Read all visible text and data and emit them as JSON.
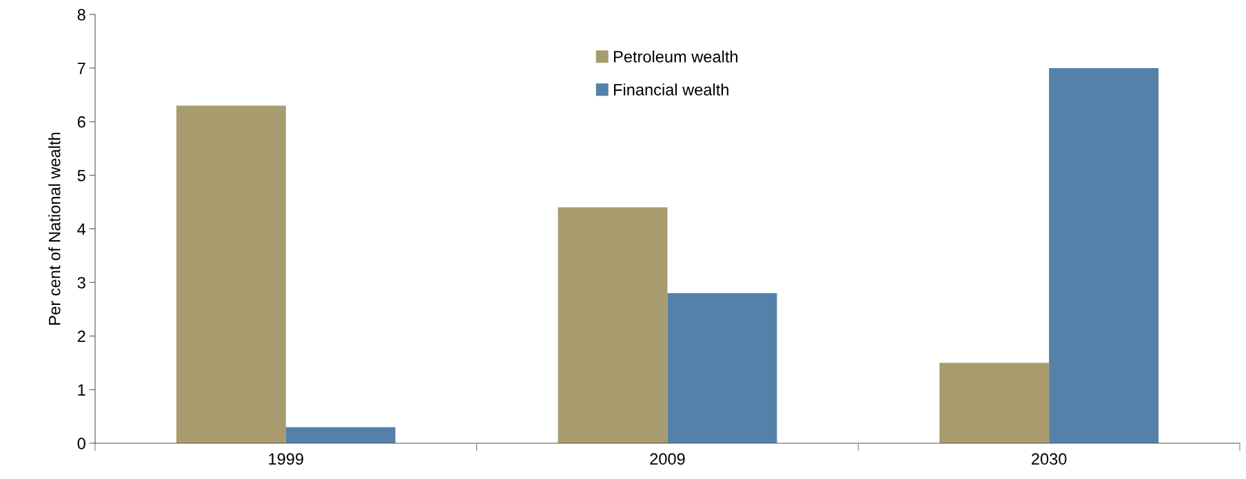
{
  "chart_data": {
    "type": "bar",
    "ylabel": "Per cent of National wealth",
    "categories": [
      "1999",
      "2009",
      "2030"
    ],
    "series": [
      {
        "name": "Petroleum wealth",
        "color": "#a89b6d",
        "values": [
          6.3,
          4.4,
          1.5
        ]
      },
      {
        "name": "Financial wealth",
        "color": "#5381aa",
        "values": [
          0.3,
          2.8,
          7.0
        ]
      }
    ],
    "ylim": [
      0,
      8
    ],
    "yticks": [
      0,
      1,
      2,
      3,
      4,
      5,
      6,
      7,
      8
    ],
    "grid": false,
    "legend": "top"
  }
}
